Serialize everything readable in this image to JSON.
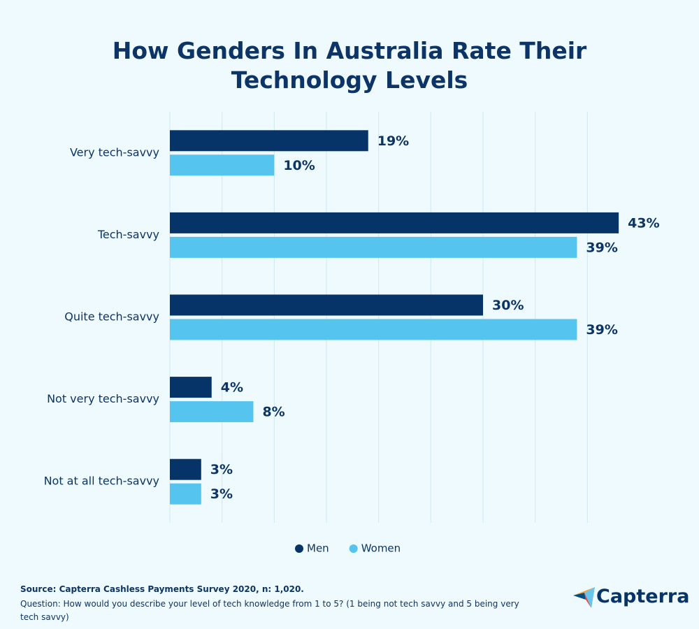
{
  "chart_data": {
    "type": "hbar",
    "title": "How Genders In Australia Rate Their Technology Levels",
    "categories": [
      "Very tech-savvy",
      "Tech-savvy",
      "Quite tech-savvy",
      "Not very tech-savvy",
      "Not at all tech-savvy"
    ],
    "series": [
      {
        "name": "Men",
        "color": "#063468",
        "values": [
          19,
          43,
          30,
          4,
          3
        ],
        "value_labels": [
          "19%",
          "43%",
          "30%",
          "4%",
          "3%"
        ]
      },
      {
        "name": "Women",
        "color": "#55c4ef",
        "values": [
          10,
          39,
          39,
          8,
          3
        ],
        "value_labels": [
          "10%",
          "39%",
          "39%",
          "8%",
          "3%"
        ]
      }
    ],
    "xlim": [
      0,
      45
    ],
    "xticks": [
      0,
      5,
      10,
      15,
      20,
      25,
      30,
      35,
      40
    ],
    "grid": true,
    "legend": "bottom"
  },
  "footer": {
    "source": "Source: Capterra Cashless Payments Survey 2020, n: 1,020.",
    "note": "Question: How would you describe your level of tech knowledge from 1 to 5? (1 being not tech savvy and 5 being very tech savvy)",
    "logo": "Capterra"
  }
}
